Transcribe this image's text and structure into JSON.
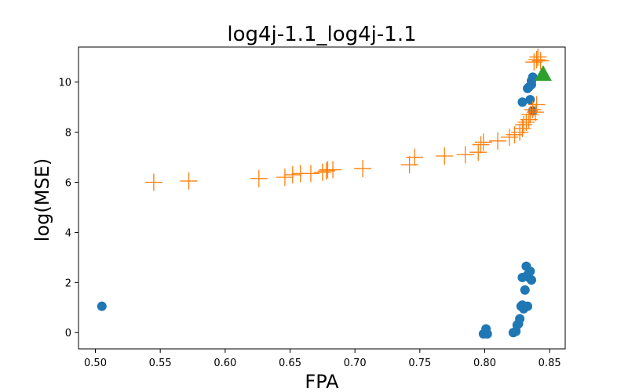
{
  "chart_data": {
    "type": "scatter",
    "title": "log4j-1.1_log4j-1.1",
    "xlabel": "FPA",
    "ylabel": "log(MSE)",
    "xlim": [
      0.487,
      0.862
    ],
    "ylim": [
      -0.65,
      11.4
    ],
    "x_ticks": [
      "0.50",
      "0.55",
      "0.60",
      "0.65",
      "0.70",
      "0.75",
      "0.80",
      "0.85"
    ],
    "x_tick_values": [
      0.5,
      0.55,
      0.6,
      0.65,
      0.7,
      0.75,
      0.8,
      0.85
    ],
    "y_ticks": [
      "0",
      "2",
      "4",
      "6",
      "8",
      "10"
    ],
    "y_tick_values": [
      0,
      2,
      4,
      6,
      8,
      10
    ],
    "grid": false,
    "legend": "none",
    "series": [
      {
        "marker": "circle",
        "color": "#1f77b4",
        "points": [
          [
            0.505,
            1.05
          ],
          [
            0.799,
            -0.05
          ],
          [
            0.801,
            0.15
          ],
          [
            0.802,
            -0.05
          ],
          [
            0.822,
            0.0
          ],
          [
            0.824,
            0.05
          ],
          [
            0.825,
            0.3
          ],
          [
            0.826,
            0.35
          ],
          [
            0.827,
            0.55
          ],
          [
            0.828,
            1.05
          ],
          [
            0.829,
            1.1
          ],
          [
            0.83,
            0.95
          ],
          [
            0.833,
            1.05
          ],
          [
            0.829,
            2.2
          ],
          [
            0.831,
            1.7
          ],
          [
            0.832,
            2.65
          ],
          [
            0.833,
            2.3
          ],
          [
            0.834,
            2.2
          ],
          [
            0.835,
            2.45
          ],
          [
            0.836,
            2.1
          ],
          [
            0.829,
            9.2
          ],
          [
            0.833,
            9.75
          ],
          [
            0.834,
            9.8
          ],
          [
            0.835,
            9.3
          ],
          [
            0.836,
            9.9
          ],
          [
            0.836,
            10.05
          ],
          [
            0.837,
            10.2
          ],
          [
            0.837,
            8.85
          ]
        ]
      },
      {
        "marker": "plus",
        "color": "#ff7f0e",
        "points": [
          [
            0.545,
            6.0
          ],
          [
            0.572,
            6.05
          ],
          [
            0.626,
            6.15
          ],
          [
            0.646,
            6.2
          ],
          [
            0.652,
            6.3
          ],
          [
            0.658,
            6.35
          ],
          [
            0.666,
            6.35
          ],
          [
            0.675,
            6.4
          ],
          [
            0.678,
            6.45
          ],
          [
            0.679,
            6.5
          ],
          [
            0.683,
            6.5
          ],
          [
            0.706,
            6.55
          ],
          [
            0.742,
            6.7
          ],
          [
            0.746,
            7.0
          ],
          [
            0.769,
            7.05
          ],
          [
            0.785,
            7.1
          ],
          [
            0.795,
            7.2
          ],
          [
            0.797,
            7.5
          ],
          [
            0.799,
            7.6
          ],
          [
            0.81,
            7.65
          ],
          [
            0.819,
            7.8
          ],
          [
            0.823,
            7.9
          ],
          [
            0.827,
            8.0
          ],
          [
            0.829,
            8.15
          ],
          [
            0.83,
            8.3
          ],
          [
            0.832,
            8.4
          ],
          [
            0.834,
            8.5
          ],
          [
            0.835,
            8.7
          ],
          [
            0.837,
            8.9
          ],
          [
            0.839,
            8.8
          ],
          [
            0.84,
            9.1
          ],
          [
            0.838,
            10.8
          ],
          [
            0.84,
            10.9
          ],
          [
            0.841,
            11.0
          ],
          [
            0.843,
            10.85
          ]
        ]
      },
      {
        "marker": "triangle",
        "color": "#2ca02c",
        "points": [
          [
            0.845,
            10.3
          ]
        ]
      }
    ]
  }
}
